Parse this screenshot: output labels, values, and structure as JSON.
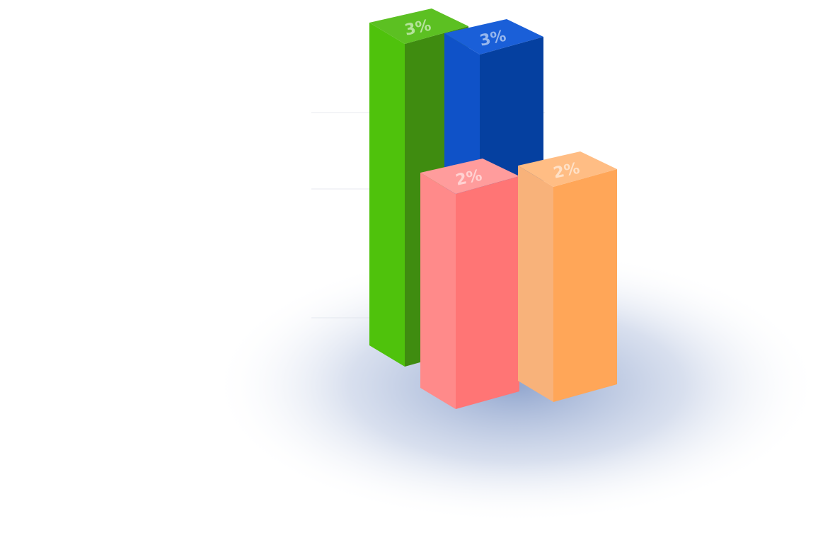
{
  "chart_data": {
    "type": "bar",
    "style": "3d-isometric",
    "title": "",
    "xlabel": "",
    "ylabel": "",
    "grid": true,
    "legend": "none",
    "rows": [
      {
        "depth": "back",
        "bars": [
          {
            "value": 3,
            "label": "3%",
            "color": "#3f8c10",
            "front_color": "#4fc20c",
            "top_color": "#5cc022"
          },
          {
            "value": 3,
            "label": "3%",
            "color": "#0540a0",
            "front_color": "#0f52c8",
            "top_color": "#1a5fd8"
          }
        ]
      },
      {
        "depth": "front",
        "bars": [
          {
            "value": 2,
            "label": "2%",
            "color": "#ff7575",
            "front_color": "#ff8a8a",
            "top_color": "#ff9c9c"
          },
          {
            "value": 2,
            "label": "2%",
            "color": "#ffa658",
            "front_color": "#f8b27a",
            "top_color": "#ffbd84"
          }
        ]
      }
    ]
  }
}
